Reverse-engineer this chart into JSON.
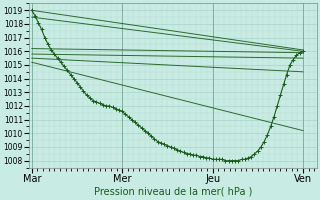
{
  "title": "Pression niveau de la mer( hPa )",
  "ylabel_ticks": [
    1008,
    1009,
    1010,
    1011,
    1012,
    1013,
    1014,
    1015,
    1016,
    1017,
    1018,
    1019
  ],
  "xtick_labels": [
    "Mar",
    "Mer",
    "Jeu",
    "Ven"
  ],
  "xtick_positions": [
    0.0,
    0.333,
    0.667,
    1.0
  ],
  "xlim": [
    -0.01,
    1.05
  ],
  "ylim": [
    1007.5,
    1019.5
  ],
  "bg_color": "#c8ece4",
  "grid_major_color": "#a8d4c8",
  "grid_minor_color": "#b8dcd4",
  "line_color": "#1a5c1a",
  "straight_lines": [
    {
      "x0": 0.0,
      "y0": 1019.0,
      "x1": 1.0,
      "y1": 1016.1
    },
    {
      "x0": 0.0,
      "y0": 1018.5,
      "x1": 1.0,
      "y1": 1016.0
    },
    {
      "x0": 0.0,
      "y0": 1016.2,
      "x1": 1.0,
      "y1": 1015.9
    },
    {
      "x0": 0.0,
      "y0": 1015.8,
      "x1": 1.0,
      "y1": 1015.5
    },
    {
      "x0": 0.0,
      "y0": 1015.5,
      "x1": 1.0,
      "y1": 1014.5
    },
    {
      "x0": 0.0,
      "y0": 1015.2,
      "x1": 1.0,
      "y1": 1010.2
    }
  ],
  "curved_x": [
    0.0,
    0.012,
    0.024,
    0.036,
    0.048,
    0.06,
    0.072,
    0.083,
    0.095,
    0.107,
    0.119,
    0.131,
    0.143,
    0.155,
    0.167,
    0.179,
    0.19,
    0.202,
    0.214,
    0.226,
    0.238,
    0.25,
    0.262,
    0.274,
    0.286,
    0.298,
    0.31,
    0.321,
    0.333,
    0.345,
    0.357,
    0.369,
    0.381,
    0.393,
    0.405,
    0.417,
    0.429,
    0.44,
    0.452,
    0.464,
    0.476,
    0.488,
    0.5,
    0.512,
    0.524,
    0.536,
    0.548,
    0.56,
    0.571,
    0.583,
    0.595,
    0.607,
    0.619,
    0.631,
    0.643,
    0.655,
    0.667,
    0.679,
    0.69,
    0.702,
    0.714,
    0.726,
    0.738,
    0.75,
    0.762,
    0.774,
    0.786,
    0.798,
    0.81,
    0.821,
    0.833,
    0.845,
    0.857,
    0.869,
    0.881,
    0.893,
    0.905,
    0.917,
    0.929,
    0.94,
    0.952,
    0.964,
    0.976,
    0.988,
    1.0
  ],
  "curved_y": [
    1019.0,
    1018.6,
    1018.1,
    1017.6,
    1017.0,
    1016.5,
    1016.1,
    1015.8,
    1015.5,
    1015.2,
    1014.9,
    1014.6,
    1014.3,
    1014.0,
    1013.7,
    1013.4,
    1013.1,
    1012.8,
    1012.6,
    1012.4,
    1012.3,
    1012.2,
    1012.1,
    1012.0,
    1012.0,
    1011.9,
    1011.8,
    1011.7,
    1011.6,
    1011.4,
    1011.2,
    1011.0,
    1010.8,
    1010.6,
    1010.4,
    1010.2,
    1010.0,
    1009.8,
    1009.6,
    1009.4,
    1009.3,
    1009.2,
    1009.1,
    1009.0,
    1008.9,
    1008.8,
    1008.7,
    1008.6,
    1008.5,
    1008.5,
    1008.4,
    1008.4,
    1008.3,
    1008.3,
    1008.2,
    1008.2,
    1008.1,
    1008.1,
    1008.1,
    1008.1,
    1008.0,
    1008.0,
    1008.0,
    1008.0,
    1008.0,
    1008.1,
    1008.1,
    1008.2,
    1008.3,
    1008.5,
    1008.7,
    1009.0,
    1009.4,
    1009.9,
    1010.5,
    1011.2,
    1012.0,
    1012.8,
    1013.6,
    1014.3,
    1015.0,
    1015.4,
    1015.7,
    1015.9,
    1016.0
  ]
}
